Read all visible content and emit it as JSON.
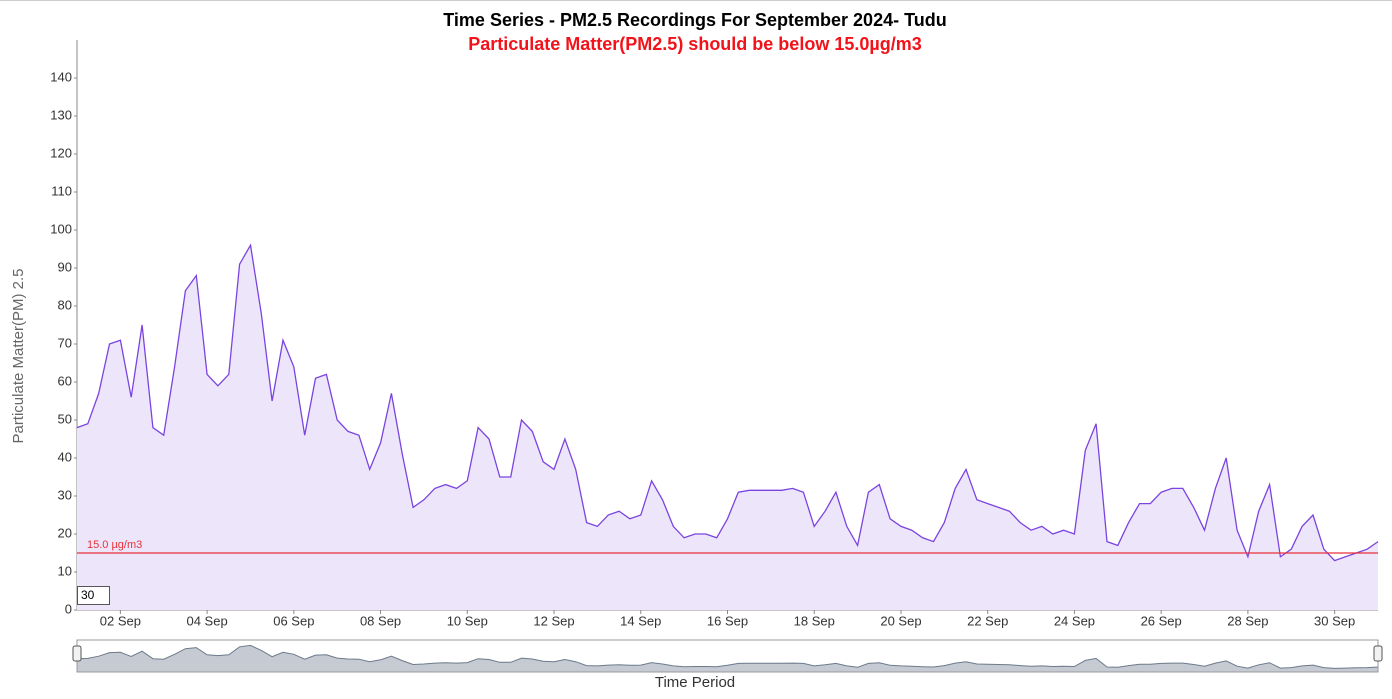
{
  "chart_data": {
    "type": "area",
    "title": "Time Series - PM2.5 Recordings For September 2024- Tudu",
    "subtitle": "Particulate Matter(PM2.5) should be below 15.0µg/m3",
    "y_label": "Particulate Matter(PM) 2.5",
    "x_label": "Time Period",
    "zoom_input": "30",
    "color": "#7b44e0",
    "fill": "#ede6fb",
    "threshold": {
      "value": 15.0,
      "label": "15.0 µg/m3",
      "color": "#e8303a"
    },
    "xlim": [
      1,
      31
    ],
    "ylim": [
      0,
      150
    ],
    "yticks": [
      0,
      10,
      20,
      30,
      40,
      50,
      60,
      70,
      80,
      90,
      100,
      110,
      120,
      130,
      140
    ],
    "xticks": [
      {
        "value": 2,
        "label": "02 Sep"
      },
      {
        "value": 4,
        "label": "04 Sep"
      },
      {
        "value": 6,
        "label": "06 Sep"
      },
      {
        "value": 8,
        "label": "08 Sep"
      },
      {
        "value": 10,
        "label": "10 Sep"
      },
      {
        "value": 12,
        "label": "12 Sep"
      },
      {
        "value": 14,
        "label": "14 Sep"
      },
      {
        "value": 16,
        "label": "16 Sep"
      },
      {
        "value": 18,
        "label": "18 Sep"
      },
      {
        "value": 20,
        "label": "20 Sep"
      },
      {
        "value": 22,
        "label": "22 Sep"
      },
      {
        "value": 24,
        "label": "24 Sep"
      },
      {
        "value": 26,
        "label": "26 Sep"
      },
      {
        "value": 28,
        "label": "28 Sep"
      },
      {
        "value": 30,
        "label": "30 Sep"
      }
    ],
    "x": [
      1,
      1.25,
      1.5,
      1.75,
      2,
      2.25,
      2.5,
      2.75,
      3,
      3.25,
      3.5,
      3.75,
      4,
      4.25,
      4.5,
      4.75,
      5,
      5.25,
      5.5,
      5.75,
      6,
      6.25,
      6.5,
      6.75,
      7,
      7.25,
      7.5,
      7.75,
      8,
      8.25,
      8.5,
      8.75,
      9,
      9.25,
      9.5,
      9.75,
      10,
      10.25,
      10.5,
      10.75,
      11,
      11.25,
      11.5,
      11.75,
      12,
      12.25,
      12.5,
      12.75,
      13,
      13.25,
      13.5,
      13.75,
      14,
      14.25,
      14.5,
      14.75,
      15,
      15.25,
      15.5,
      15.75,
      16,
      16.25,
      16.5,
      16.75,
      17,
      17.25,
      17.5,
      17.75,
      18,
      18.25,
      18.5,
      18.75,
      19,
      19.25,
      19.5,
      19.75,
      20,
      20.25,
      20.5,
      20.75,
      21,
      21.25,
      21.5,
      21.75,
      22,
      22.25,
      22.5,
      22.75,
      23,
      23.25,
      23.5,
      23.75,
      24,
      24.25,
      24.5,
      24.75,
      25,
      25.25,
      25.5,
      25.75,
      26,
      26.25,
      26.5,
      26.75,
      27,
      27.25,
      27.5,
      27.75,
      28,
      28.25,
      28.5,
      28.75,
      29,
      29.25,
      29.5,
      29.75,
      30,
      30.25,
      30.5,
      30.75,
      31
    ],
    "values": [
      48,
      49,
      57,
      70,
      71,
      56,
      75,
      48,
      46,
      64,
      84,
      88,
      62,
      59,
      62,
      91,
      96,
      78,
      55,
      71,
      64,
      46,
      61,
      62,
      50,
      47,
      46,
      37,
      44,
      57,
      41,
      27,
      29,
      32,
      33,
      32,
      34,
      48,
      45,
      35,
      35,
      50,
      47,
      39,
      37,
      45,
      37,
      23,
      22,
      25,
      26,
      24,
      25,
      34,
      29,
      22,
      19,
      20,
      20,
      19,
      24,
      31,
      31.5,
      31.5,
      31.5,
      31.5,
      32,
      31,
      22,
      26,
      31,
      22,
      17,
      31,
      33,
      24,
      22,
      21,
      19,
      18,
      23,
      32,
      37,
      29,
      28,
      27,
      26,
      23,
      21,
      22,
      20,
      21,
      20,
      42,
      49,
      18,
      17,
      23,
      28,
      28,
      31,
      32,
      32,
      27,
      21,
      32,
      40,
      21,
      14,
      26,
      33,
      14,
      16,
      22,
      25,
      16,
      13,
      14,
      15,
      16,
      18
    ]
  }
}
